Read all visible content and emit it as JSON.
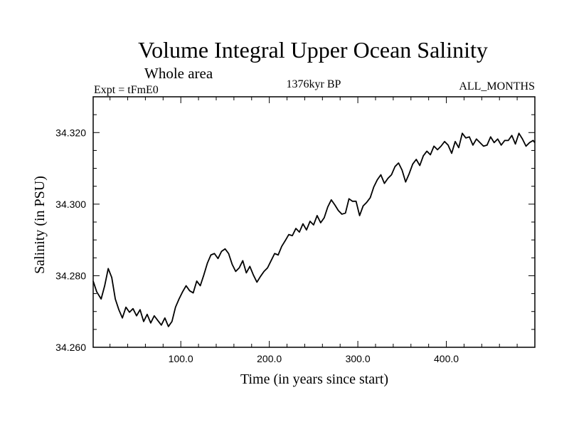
{
  "chart_data": {
    "type": "line",
    "title": "Volume Integral Upper Ocean Salinity",
    "subtitle": "Whole area",
    "experiment": "Expt = tFmE0",
    "period": "1376kyr BP",
    "months": "ALL_MONTHS",
    "xlabel": "Time (in years since start)",
    "ylabel": "Salinity (in PSU)",
    "xlim": [
      1,
      500
    ],
    "ylim": [
      34.26,
      34.33
    ],
    "xticks": [
      100,
      200,
      300,
      400
    ],
    "xtick_labels": [
      "100.0",
      "200.0",
      "300.0",
      "400.0"
    ],
    "yticks": [
      34.26,
      34.28,
      34.3,
      34.32
    ],
    "ytick_labels": [
      "34.260",
      "34.280",
      "34.300",
      "34.320"
    ],
    "x_minor_step": 20,
    "y_minor_step": 0.005,
    "grid": false,
    "series": [
      {
        "name": "salinity",
        "x": [
          1,
          5,
          10,
          14,
          18,
          22,
          26,
          30,
          34,
          38,
          42,
          46,
          50,
          54,
          58,
          62,
          66,
          70,
          74,
          78,
          82,
          86,
          90,
          94,
          98,
          102,
          106,
          110,
          114,
          118,
          122,
          126,
          130,
          134,
          138,
          142,
          146,
          150,
          154,
          158,
          162,
          166,
          170,
          174,
          178,
          182,
          186,
          190,
          194,
          198,
          202,
          206,
          210,
          214,
          218,
          222,
          226,
          230,
          234,
          238,
          242,
          246,
          250,
          254,
          258,
          262,
          266,
          270,
          274,
          278,
          282,
          286,
          290,
          294,
          298,
          302,
          306,
          310,
          314,
          318,
          322,
          326,
          330,
          334,
          338,
          342,
          346,
          350,
          354,
          358,
          362,
          366,
          370,
          374,
          378,
          382,
          386,
          390,
          394,
          398,
          402,
          406,
          410,
          414,
          418,
          422,
          426,
          430,
          434,
          438,
          442,
          446,
          450,
          454,
          458,
          462,
          466,
          470,
          474,
          478,
          482,
          486,
          490,
          494,
          498,
          500
        ],
        "y": [
          34.2785,
          34.2755,
          34.2735,
          34.2772,
          34.282,
          34.2795,
          34.2735,
          34.2705,
          34.2682,
          34.2712,
          34.2698,
          34.2708,
          34.2688,
          34.2705,
          34.2672,
          34.2692,
          34.2668,
          34.2688,
          34.2675,
          34.2662,
          34.2682,
          34.2658,
          34.2672,
          34.2712,
          34.2735,
          34.2755,
          34.2772,
          34.2758,
          34.2752,
          34.2785,
          34.2772,
          34.2802,
          34.2835,
          34.2858,
          34.2862,
          34.2848,
          34.2868,
          34.2875,
          34.2862,
          34.2832,
          34.2812,
          34.2822,
          34.2842,
          34.2808,
          34.2826,
          34.2802,
          34.2782,
          34.2798,
          34.2812,
          34.2822,
          34.2842,
          34.2862,
          34.2858,
          34.2882,
          34.2898,
          34.2915,
          34.2912,
          34.2932,
          34.2922,
          34.2945,
          34.2928,
          34.2952,
          34.2942,
          34.2968,
          34.2948,
          34.2962,
          34.2992,
          34.3012,
          34.2998,
          34.2982,
          34.2972,
          34.2975,
          34.3015,
          34.3008,
          34.3008,
          34.2968,
          34.2995,
          34.3005,
          34.3018,
          34.3048,
          34.3068,
          34.3082,
          34.3058,
          34.3072,
          34.3082,
          34.3105,
          34.3115,
          34.3095,
          34.3062,
          34.3085,
          34.3112,
          34.3125,
          34.3108,
          34.3135,
          34.3148,
          34.3138,
          34.3162,
          34.3152,
          34.3162,
          34.3175,
          34.3165,
          34.3142,
          34.3175,
          34.3158,
          34.3198,
          34.3185,
          34.3188,
          34.3165,
          34.3182,
          34.3172,
          34.3162,
          34.3165,
          34.3188,
          34.3172,
          34.3182,
          34.3165,
          34.3178,
          34.3178,
          34.3192,
          34.3168,
          34.3198,
          34.3182,
          34.3162,
          34.3172,
          34.3178,
          34.3172
        ]
      }
    ]
  }
}
